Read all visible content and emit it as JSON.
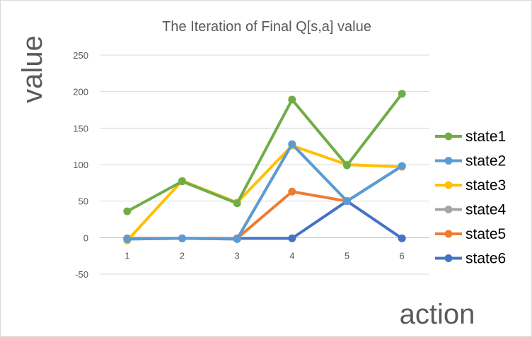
{
  "chart_data": {
    "type": "line",
    "title": "The Iteration of Final Q[s,a] value",
    "xlabel": "action",
    "ylabel": "value",
    "categories": [
      "1",
      "2",
      "3",
      "4",
      "5",
      "6"
    ],
    "ylim": [
      -50,
      250
    ],
    "yticks": [
      "250",
      "200",
      "150",
      "100",
      "50",
      "0",
      "-50"
    ],
    "ytick_values": [
      250,
      200,
      150,
      100,
      50,
      0,
      -50
    ],
    "grid": true,
    "legend_position": "right",
    "series": [
      {
        "name": "state1",
        "color": "#70ad47",
        "values": [
          36,
          77,
          47,
          189,
          99,
          197
        ]
      },
      {
        "name": "state2",
        "color": "#5b9bd5",
        "values": [
          -2,
          -1,
          -2,
          128,
          50,
          98
        ]
      },
      {
        "name": "state3",
        "color": "#ffc000",
        "values": [
          -4,
          78,
          48,
          126,
          100,
          97
        ]
      },
      {
        "name": "state4",
        "color": "#a5a5a5",
        "values": [
          -2,
          -1,
          -2,
          128,
          50,
          98
        ]
      },
      {
        "name": "state5",
        "color": "#ed7d31",
        "values": [
          -1,
          -1,
          -1,
          63,
          50,
          98
        ]
      },
      {
        "name": "state6",
        "color": "#4472c4",
        "values": [
          -1,
          -1,
          -1,
          -1,
          50,
          -1
        ]
      }
    ]
  }
}
